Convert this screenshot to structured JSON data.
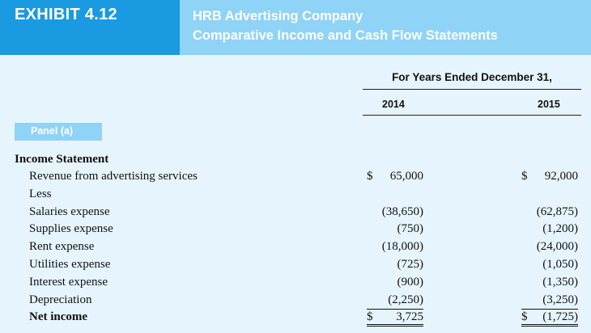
{
  "exhibit": {
    "label": "EXHIBIT 4.12"
  },
  "title": {
    "line1": "HRB Advertising Company",
    "line2": "Comparative Income and Cash Flow Statements"
  },
  "columns": {
    "heading": "For Years Ended December 31,",
    "years": [
      "2014",
      "2015"
    ]
  },
  "panel": {
    "label": "Panel (a)"
  },
  "statement": {
    "title": "Income Statement",
    "rows": [
      {
        "label": "Revenue from advertising services",
        "bold": false,
        "v2014": "65,000",
        "c2014": "$",
        "v2015": "92,000",
        "c2015": "$",
        "rule": ""
      },
      {
        "label": "Less",
        "bold": false,
        "v2014": "",
        "c2014": "",
        "v2015": "",
        "c2015": "",
        "rule": ""
      },
      {
        "label": "Salaries expense",
        "bold": false,
        "v2014": "(38,650)",
        "c2014": "",
        "v2015": "(62,875)",
        "c2015": "",
        "rule": ""
      },
      {
        "label": "Supplies expense",
        "bold": false,
        "v2014": "(750)",
        "c2014": "",
        "v2015": "(1,200)",
        "c2015": "",
        "rule": ""
      },
      {
        "label": "Rent expense",
        "bold": false,
        "v2014": "(18,000)",
        "c2014": "",
        "v2015": "(24,000)",
        "c2015": "",
        "rule": ""
      },
      {
        "label": "Utilities expense",
        "bold": false,
        "v2014": "(725)",
        "c2014": "",
        "v2015": "(1,050)",
        "c2015": "",
        "rule": ""
      },
      {
        "label": "Interest expense",
        "bold": false,
        "v2014": "(900)",
        "c2014": "",
        "v2015": "(1,350)",
        "c2015": "",
        "rule": ""
      },
      {
        "label": "Depreciation",
        "bold": false,
        "v2014": "(2,250)",
        "c2014": "",
        "v2015": "(3,250)",
        "c2015": "",
        "rule": "single"
      },
      {
        "label": "Net income",
        "bold": true,
        "v2014": "3,725",
        "c2014": "$",
        "v2015": "(1,725)",
        "c2015": "$",
        "rule": "double"
      }
    ]
  }
}
